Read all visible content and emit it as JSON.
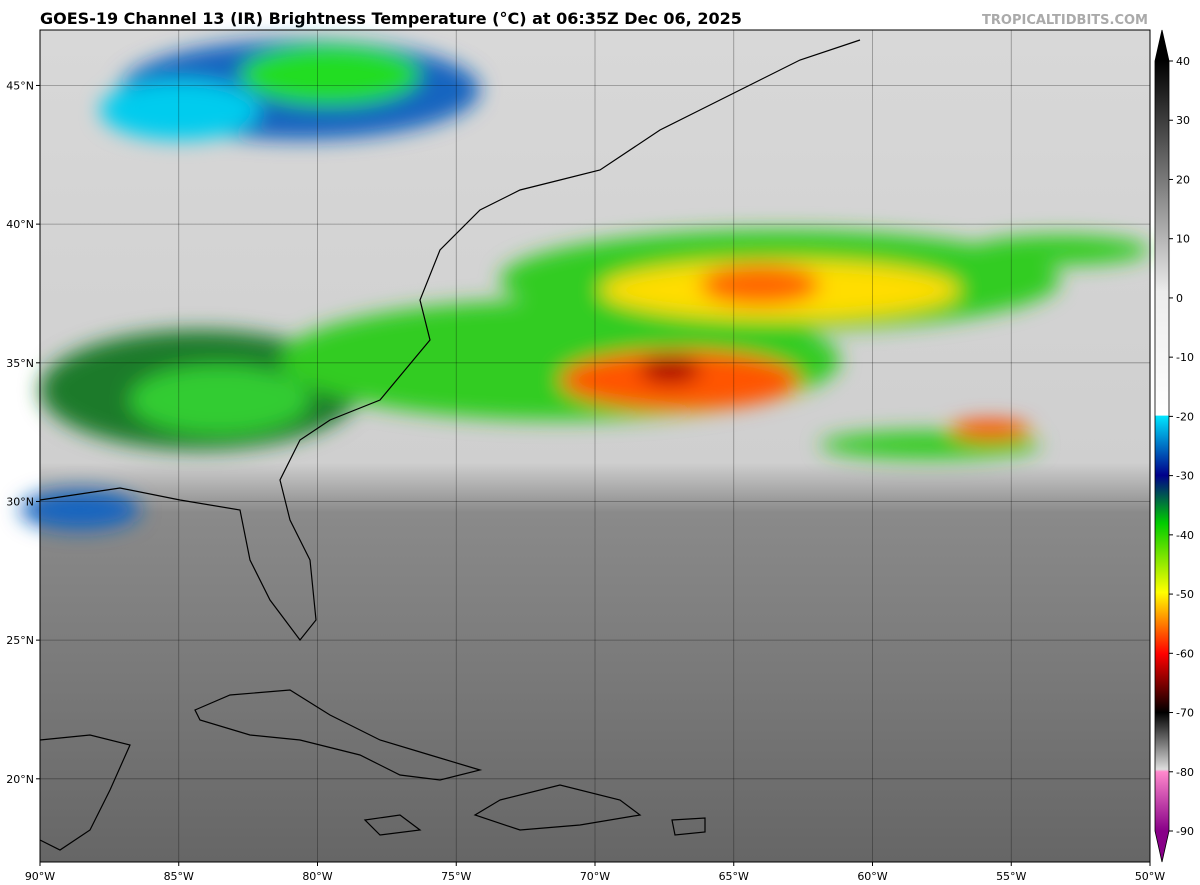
{
  "title": "GOES-19 Channel 13 (IR) Brightness Temperature (°C) at 06:35Z Dec 06, 2025",
  "credit": "TROPICALTIDBITS.COM",
  "map": {
    "lon_range": [
      -90,
      -50
    ],
    "lat_range": [
      17,
      47
    ],
    "lon_ticks": [
      {
        "value": -90,
        "label": "90°W"
      },
      {
        "value": -85,
        "label": "85°W"
      },
      {
        "value": -80,
        "label": "80°W"
      },
      {
        "value": -75,
        "label": "75°W"
      },
      {
        "value": -70,
        "label": "70°W"
      },
      {
        "value": -65,
        "label": "65°W"
      },
      {
        "value": -60,
        "label": "60°W"
      },
      {
        "value": -55,
        "label": "55°W"
      },
      {
        "value": -50,
        "label": "50°W"
      }
    ],
    "lat_ticks": [
      {
        "value": 20,
        "label": "20°N"
      },
      {
        "value": 25,
        "label": "25°N"
      },
      {
        "value": 30,
        "label": "30°N"
      },
      {
        "value": 35,
        "label": "35°N"
      },
      {
        "value": 40,
        "label": "40°N"
      },
      {
        "value": 45,
        "label": "45°N"
      }
    ]
  },
  "colorbar": {
    "lim": [
      -90,
      40
    ],
    "ticks": [
      40,
      30,
      20,
      10,
      0,
      -10,
      -20,
      -30,
      -40,
      -50,
      -60,
      -70,
      -80,
      -90
    ]
  }
}
